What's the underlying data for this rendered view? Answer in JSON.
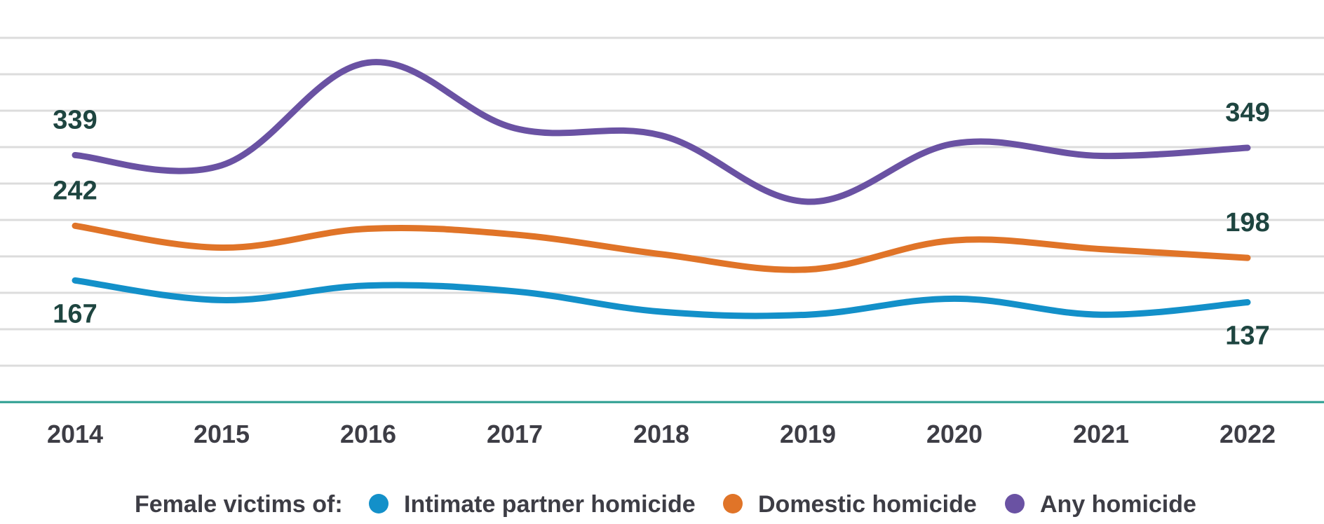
{
  "chart_data": {
    "type": "line",
    "categories": [
      "2014",
      "2015",
      "2016",
      "2017",
      "2018",
      "2019",
      "2020",
      "2021",
      "2022"
    ],
    "ylim": [
      0,
      500
    ],
    "grid": true,
    "series": [
      {
        "name": "Intimate partner homicide",
        "color": "#1390c9",
        "values": [
          167,
          140,
          160,
          152,
          124,
          120,
          142,
          120,
          137
        ],
        "labels": [
          {
            "index": 0,
            "text": "167",
            "position": "below"
          },
          {
            "index": 8,
            "text": "137",
            "position": "below"
          }
        ]
      },
      {
        "name": "Domestic homicide",
        "color": "#e07428",
        "values": [
          242,
          212,
          238,
          230,
          203,
          182,
          222,
          210,
          198
        ],
        "labels": [
          {
            "index": 0,
            "text": "242",
            "position": "above"
          },
          {
            "index": 8,
            "text": "198",
            "position": "above"
          }
        ]
      },
      {
        "name": "Any homicide",
        "color": "#6a52a3",
        "values": [
          339,
          325,
          466,
          376,
          366,
          275,
          355,
          338,
          349
        ],
        "labels": [
          {
            "index": 0,
            "text": "339",
            "position": "above"
          },
          {
            "index": 8,
            "text": "349",
            "position": "above"
          }
        ]
      }
    ],
    "legend": {
      "title": "Female victims of:",
      "placement": "bottom"
    }
  }
}
